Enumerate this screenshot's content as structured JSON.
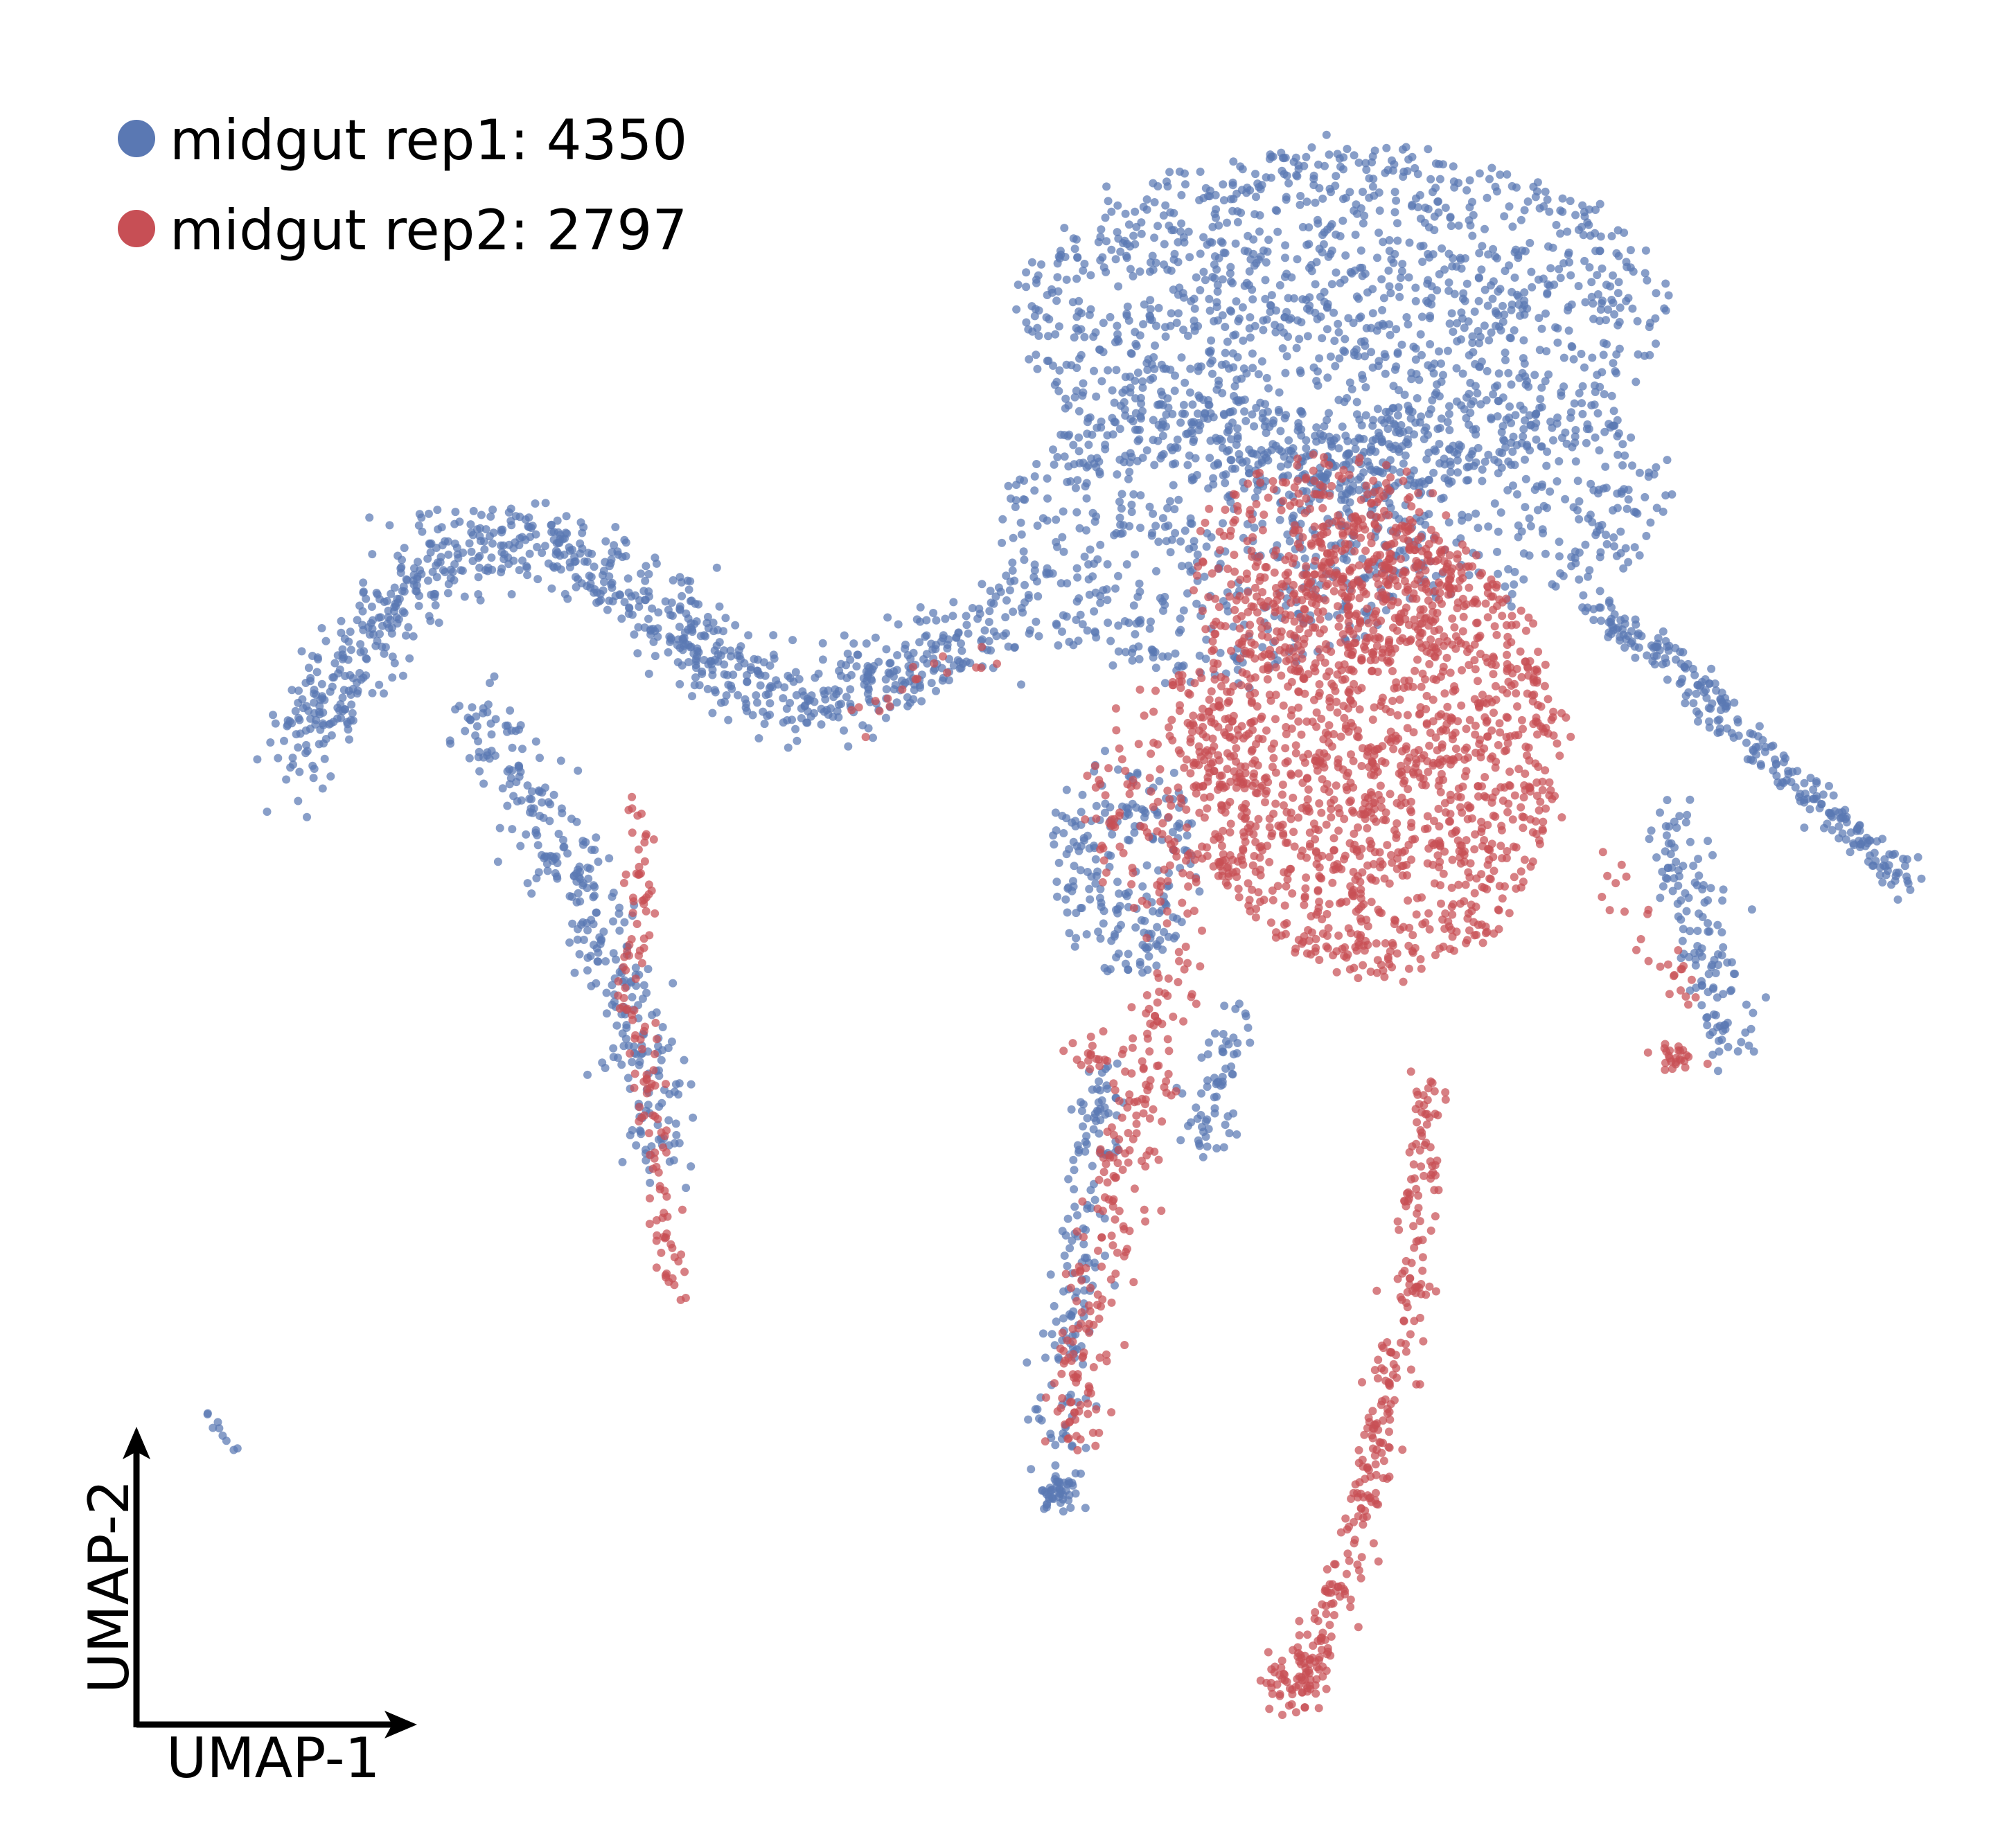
{
  "chart_data": {
    "type": "scatter",
    "title": "",
    "xlabel": "UMAP-1",
    "ylabel": "UMAP-2",
    "grid": false,
    "legend_position": "top-left",
    "series": [
      {
        "name": "midgut rep1: 4350",
        "color": "#5a78b3",
        "count": 4350
      },
      {
        "name": "midgut rep2: 2797",
        "color": "#c74f55",
        "count": 2797
      }
    ]
  }
}
